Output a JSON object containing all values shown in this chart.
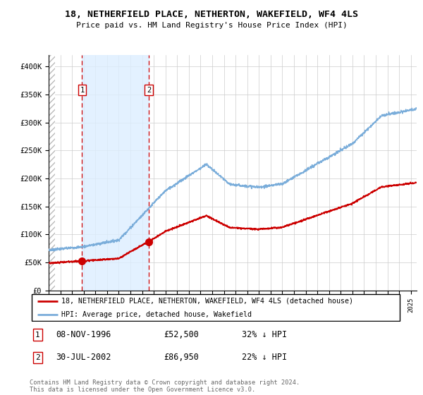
{
  "title": "18, NETHERFIELD PLACE, NETHERTON, WAKEFIELD, WF4 4LS",
  "subtitle": "Price paid vs. HM Land Registry's House Price Index (HPI)",
  "legend_line1": "18, NETHERFIELD PLACE, NETHERTON, WAKEFIELD, WF4 4LS (detached house)",
  "legend_line2": "HPI: Average price, detached house, Wakefield",
  "sale1_date": "08-NOV-1996",
  "sale1_price": 52500,
  "sale1_pct": "32%",
  "sale2_date": "30-JUL-2002",
  "sale2_price": 86950,
  "sale2_pct": "22%",
  "footer": "Contains HM Land Registry data © Crown copyright and database right 2024.\nThis data is licensed under the Open Government Licence v3.0.",
  "red_color": "#cc0000",
  "blue_color": "#7aadda",
  "shade_color": "#ddeeff",
  "grid_color": "#cccccc",
  "ylim": [
    0,
    420000
  ],
  "xstart": 1994.0,
  "xend": 2025.5,
  "sale1_x": 1996.86,
  "sale2_x": 2002.58
}
